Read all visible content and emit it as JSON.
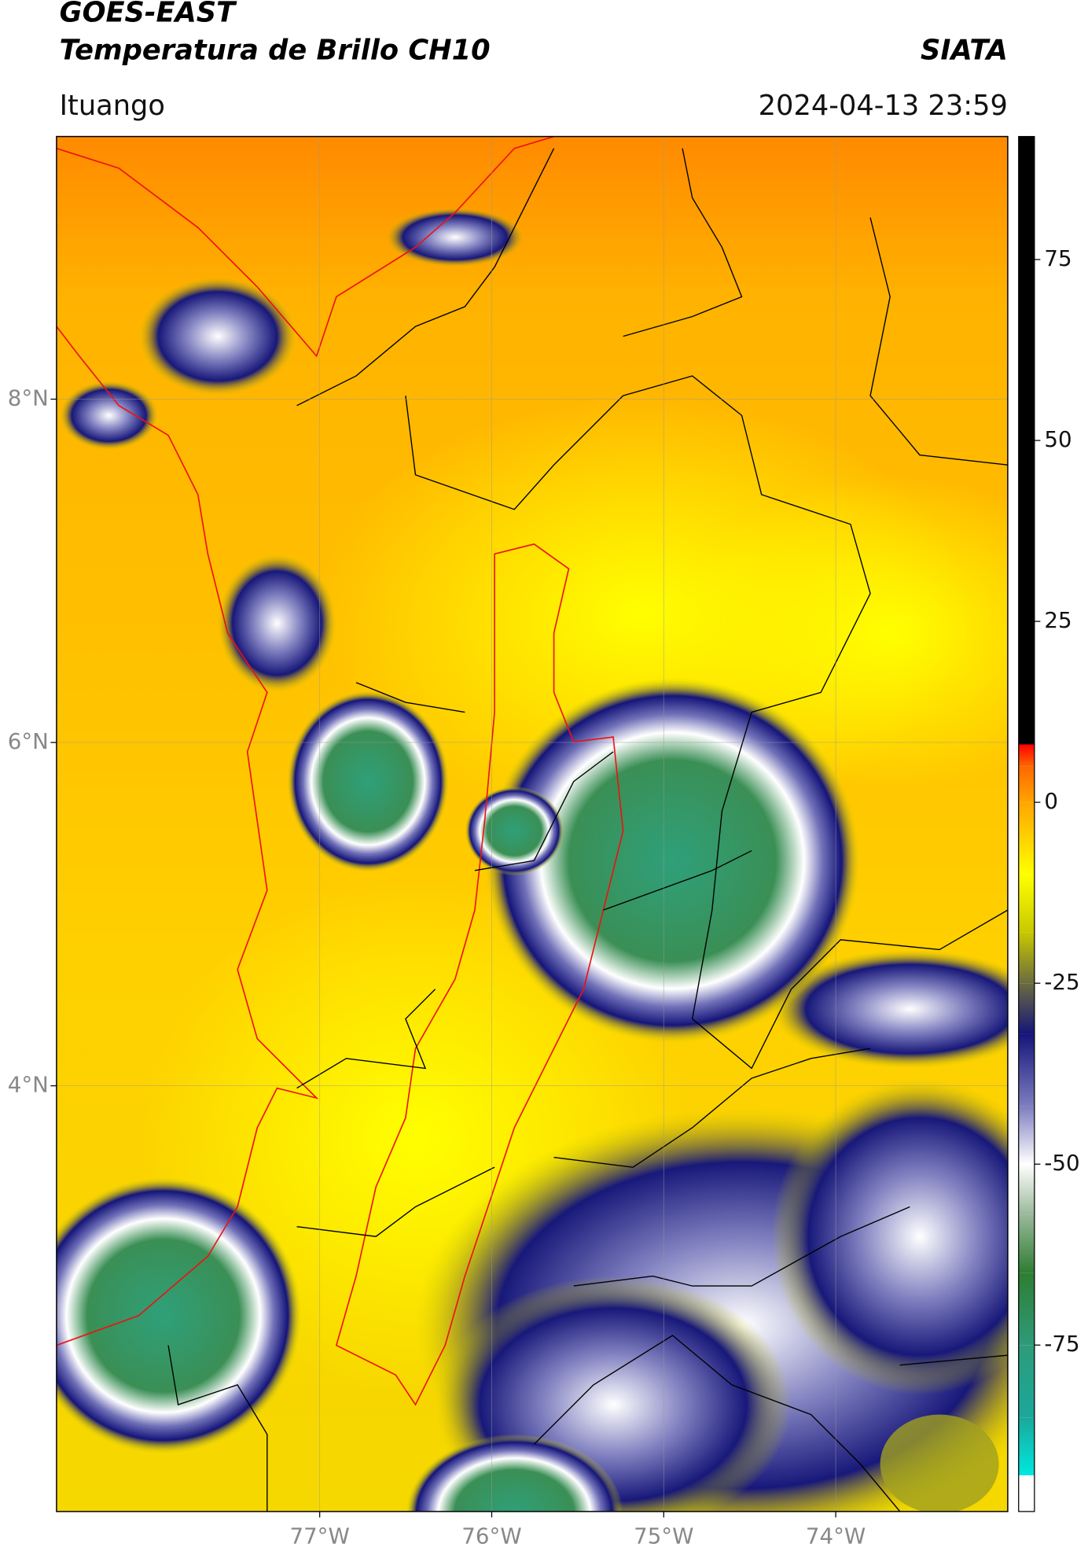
{
  "chart_data": {
    "type": "map",
    "title": "GOES-EAST",
    "subtitle": "Temperatura de Brillo CH10",
    "source": "SIATA",
    "location": "Ituango",
    "timestamp": "2024-04-13 23:59",
    "xlim": [
      -78.53,
      -73.0
    ],
    "ylim": [
      1.52,
      9.53
    ],
    "xticks": [
      {
        "value": -77,
        "label": "77°W"
      },
      {
        "value": -76,
        "label": "76°W"
      },
      {
        "value": -75,
        "label": "75°W"
      },
      {
        "value": -74,
        "label": "74°W"
      }
    ],
    "yticks": [
      {
        "value": 4,
        "label": "4°N"
      },
      {
        "value": 6,
        "label": "6°N"
      },
      {
        "value": 8,
        "label": "8°N"
      }
    ],
    "grid": true,
    "colorbar": {
      "lim": [
        -98,
        92
      ],
      "ticks": [
        -75,
        -50,
        -25,
        0,
        25,
        50,
        75
      ],
      "stops": [
        {
          "value": -98,
          "color": "#ffffff"
        },
        {
          "value": -93,
          "color": "#ffffff"
        },
        {
          "value": -93,
          "color": "#00e8e0"
        },
        {
          "value": -85,
          "color": "#1aa89a"
        },
        {
          "value": -75,
          "color": "#2e9b7a"
        },
        {
          "value": -65,
          "color": "#2e7d32"
        },
        {
          "value": -57,
          "color": "#9ab89a"
        },
        {
          "value": -50,
          "color": "#ffffff"
        },
        {
          "value": -42,
          "color": "#7d7dc0"
        },
        {
          "value": -32,
          "color": "#15157a"
        },
        {
          "value": -25,
          "color": "#6b6b40"
        },
        {
          "value": -18,
          "color": "#c8c800"
        },
        {
          "value": -10,
          "color": "#ffff00"
        },
        {
          "value": 0,
          "color": "#ffa500"
        },
        {
          "value": 5,
          "color": "#ff6600"
        },
        {
          "value": 8,
          "color": "#ff0000"
        },
        {
          "value": 8,
          "color": "#000000"
        },
        {
          "value": 92,
          "color": "#000000"
        }
      ]
    }
  }
}
